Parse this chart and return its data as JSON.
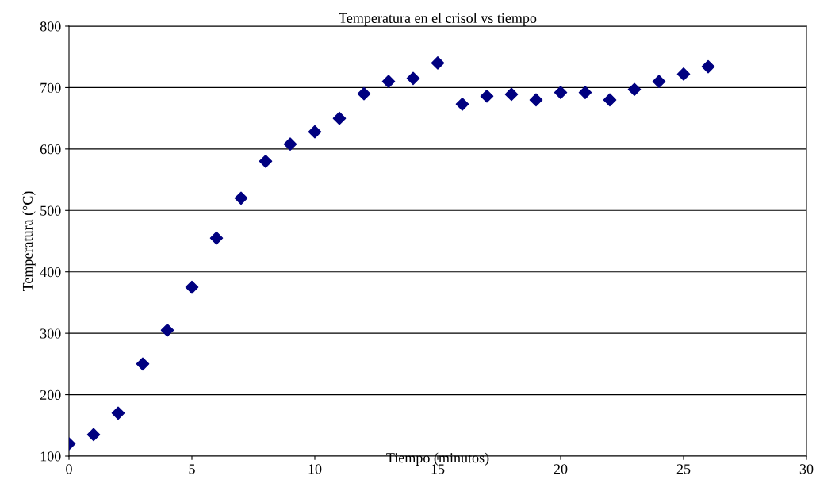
{
  "chart_data": {
    "type": "scatter",
    "title": "Temperatura en el crisol vs tiempo",
    "xlabel": "Tiempo (minutos)",
    "ylabel": "Temperatura (°C)",
    "x": [
      0,
      1,
      2,
      3,
      4,
      5,
      6,
      7,
      8,
      9,
      10,
      11,
      12,
      13,
      14,
      15,
      16,
      17,
      18,
      19,
      20,
      21,
      22,
      23,
      24,
      25,
      26
    ],
    "series": [
      {
        "color": "#000080",
        "values": [
          120,
          135,
          170,
          250,
          305,
          375,
          455,
          520,
          580,
          608,
          628,
          650,
          690,
          710,
          715,
          740,
          673,
          686,
          689,
          680,
          692,
          692,
          680,
          697,
          710,
          722,
          734
        ]
      }
    ],
    "xlim": [
      0,
      30
    ],
    "xticks": [
      0,
      5,
      10,
      15,
      20,
      25,
      30
    ],
    "ylim": [
      100,
      800
    ],
    "yticks": [
      100,
      200,
      300,
      400,
      500,
      600,
      700,
      800
    ],
    "grid": "y",
    "marker": "diamond",
    "legend": false
  }
}
